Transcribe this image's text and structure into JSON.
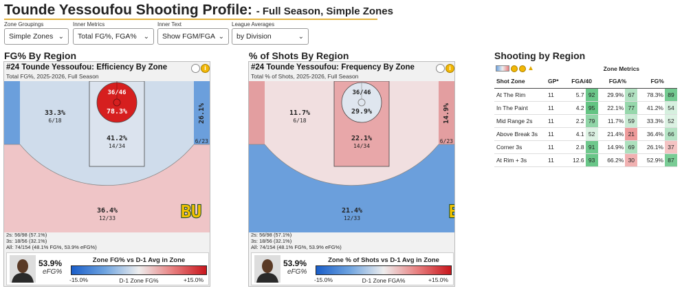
{
  "header": {
    "title": "Tounde Yessoufou Shooting Profile:",
    "subtitle": "- Full Season, Simple Zones"
  },
  "controls": [
    {
      "label": "Zone Groupings",
      "value": "Simple Zones"
    },
    {
      "label": "Inner Metrics",
      "value": "Total FG%, FGA%"
    },
    {
      "label": "Inner Text",
      "value": "Show FGM/FGA"
    },
    {
      "label": "League Averages",
      "value": "by Division"
    }
  ],
  "panels": {
    "efficiency": {
      "heading": "FG% By Region",
      "title": "#24 Tounde Yessoufou: Efficiency By Zone",
      "subtitle": "Total FG%, 2025-2026, Full Season",
      "zones": {
        "rim": {
          "top": "36/46",
          "main": "78.3%",
          "color": "#d61f1f"
        },
        "paint": {
          "main": "41.2%",
          "sub": "14/34",
          "color": "#dbe3ee"
        },
        "mid": {
          "main": "33.3%",
          "sub": "6/18",
          "color": "#cfdceb"
        },
        "corner": {
          "main": "26.1%",
          "sub": "6/23",
          "color": "#6b9fdc"
        },
        "above": {
          "main": "36.4%",
          "sub": "12/33",
          "color": "#efc5c7"
        }
      },
      "summary": [
        "2s: 56/98 (57.1%)",
        "3s: 18/56 (32.1%)",
        "All: 74/154 (48.1% FG%, 53.9% eFG%)"
      ],
      "efg_value": "53.9%",
      "efg_label": "eFG%",
      "legend_title": "Zone FG% vs D-1 Avg in Zone",
      "legend_low": "-15.0%",
      "legend_high": "+15.0%",
      "legend_mid": "D-1 Zone FG%"
    },
    "frequency": {
      "heading": "% of Shots By Region",
      "title": "#24 Tounde Yessoufou: Frequency By Zone",
      "subtitle": "Total % of Shots, 2025-2026, Full Season",
      "zones": {
        "rim": {
          "top": "36/46",
          "main": "29.9%",
          "color": "#dfe6ef"
        },
        "paint": {
          "main": "22.1%",
          "sub": "14/34",
          "color": "#e8a7a9"
        },
        "mid": {
          "main": "11.7%",
          "sub": "6/18",
          "color": "#f1dfe0"
        },
        "corner": {
          "main": "14.9%",
          "sub": "6/23",
          "color": "#e39ea0"
        },
        "above": {
          "main": "21.4%",
          "sub": "12/33",
          "color": "#6b9fdc"
        }
      },
      "summary": [
        "2s: 56/98 (57.1%)",
        "3s: 18/56 (32.1%)",
        "All: 74/154 (48.1% FG%, 53.9% eFG%)"
      ],
      "efg_value": "53.9%",
      "efg_label": "eFG%",
      "legend_title": "Zone % of Shots vs D-1 Avg in Zone",
      "legend_low": "-15.0%",
      "legend_high": "+15.0%",
      "legend_mid": "D-1 Zone FGA%"
    }
  },
  "table": {
    "heading": "Shooting by Region",
    "group_header": "Zone Metrics",
    "columns": [
      "Shot Zone",
      "GP*",
      "FGA/40",
      "FGA%",
      "FG%"
    ],
    "rows": [
      {
        "zone": "At The Rim",
        "gp": "11",
        "fga40": "5.7",
        "fga40_pct": "92",
        "fga_share": "29.9%",
        "fga_share_pct": "67",
        "fg": "78.3%",
        "fg_pct": "89"
      },
      {
        "zone": "In The Paint",
        "gp": "11",
        "fga40": "4.2",
        "fga40_pct": "95",
        "fga_share": "22.1%",
        "fga_share_pct": "77",
        "fg": "41.2%",
        "fg_pct": "54"
      },
      {
        "zone": "Mid Range 2s",
        "gp": "11",
        "fga40": "2.2",
        "fga40_pct": "79",
        "fga_share": "11.7%",
        "fga_share_pct": "59",
        "fg": "33.3%",
        "fg_pct": "52"
      },
      {
        "zone": "Above Break 3s",
        "gp": "11",
        "fga40": "4.1",
        "fga40_pct": "52",
        "fga_share": "21.4%",
        "fga_share_pct": "21",
        "fg": "36.4%",
        "fg_pct": "66"
      },
      {
        "zone": "Corner 3s",
        "gp": "11",
        "fga40": "2.8",
        "fga40_pct": "91",
        "fga_share": "14.9%",
        "fga_share_pct": "69",
        "fg": "26.1%",
        "fg_pct": "37"
      },
      {
        "zone": "At Rim + 3s",
        "gp": "11",
        "fga40": "12.6",
        "fga40_pct": "93",
        "fga_share": "66.2%",
        "fga_share_pct": "30",
        "fg": "52.9%",
        "fg_pct": "87"
      }
    ]
  },
  "colors": {
    "accent_underline": "#e3b23c",
    "logo_green": "#1f4d2b",
    "logo_gold": "#f2c200"
  }
}
